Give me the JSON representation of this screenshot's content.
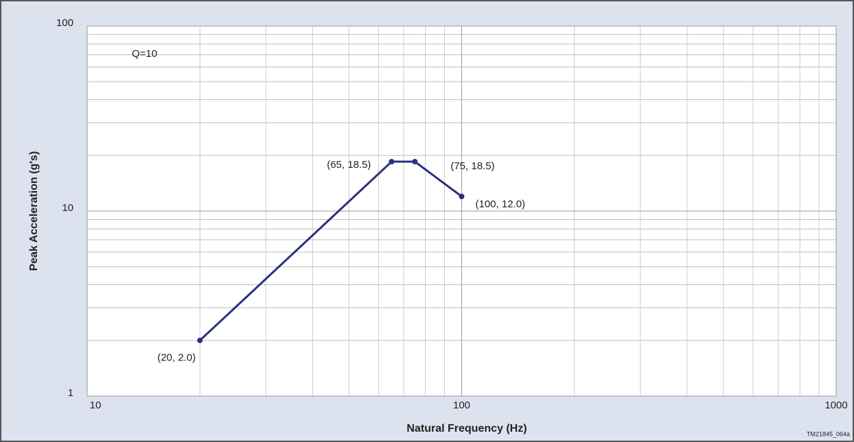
{
  "chart_data": {
    "type": "line",
    "x_label": "Natural Frequency (Hz)",
    "y_label": "Peak Acceleration (g's)",
    "annotation": "Q=10",
    "footnote": "TM21845_064a",
    "xscale": "log",
    "yscale": "log",
    "x": [
      20,
      65,
      75,
      100
    ],
    "series": [
      {
        "name": "Q=10",
        "color": "#2b2f7f",
        "values": [
          2.0,
          18.5,
          18.5,
          12.0
        ],
        "value_labels": [
          "(20,  2.0)",
          "(65,  18.5)",
          "(75,  18.5)",
          "(100,  12.0)"
        ]
      }
    ],
    "xlim": [
      10,
      1000
    ],
    "xticks": [
      10,
      100,
      1000
    ],
    "ylim": [
      1,
      100
    ],
    "yticks": [
      1,
      10,
      100
    ],
    "grid": true
  }
}
